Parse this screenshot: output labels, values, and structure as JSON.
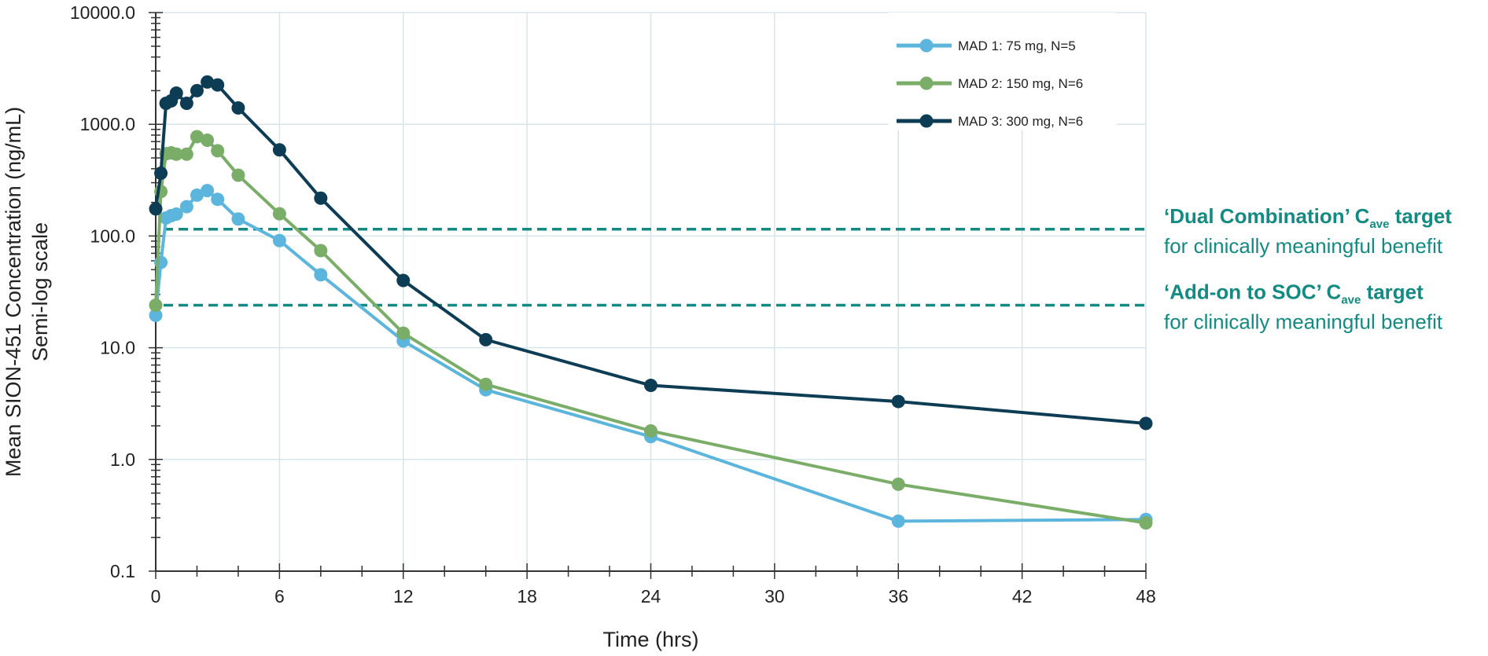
{
  "chart_data": {
    "type": "line",
    "xlabel": "Time (hrs)",
    "ylabel_line1": "Mean SION-451 Concentration (ng/mL)",
    "ylabel_line2": "Semi-log scale",
    "yscale": "log",
    "xlim": [
      0,
      48
    ],
    "ylim": [
      0.1,
      10000
    ],
    "x_ticks": [
      0,
      6,
      12,
      18,
      24,
      30,
      36,
      42,
      48
    ],
    "x_tick_labels": [
      "0",
      "6",
      "12",
      "18",
      "24",
      "30",
      "36",
      "42",
      "48"
    ],
    "y_ticks": [
      0.1,
      1,
      10,
      100,
      1000,
      10000
    ],
    "y_tick_labels": [
      "0.1",
      "1.0",
      "10.0",
      "100.0",
      "1000.0",
      "10000.0"
    ],
    "grid": true,
    "legend_position": "top-right",
    "series": [
      {
        "name": "MAD 1: 75 mg, N=5",
        "color": "#5bb5dc",
        "x": [
          0,
          0.25,
          0.5,
          0.75,
          1,
          1.5,
          2,
          2.5,
          3,
          4,
          6,
          8,
          12,
          16,
          24,
          36,
          48
        ],
        "y": [
          19.5,
          58,
          145,
          152,
          157,
          183,
          232,
          255,
          213,
          142,
          91,
          45,
          11.5,
          4.2,
          1.6,
          0.28,
          0.29
        ]
      },
      {
        "name": "MAD 2: 150 mg, N=6",
        "color": "#7aad67",
        "x": [
          0,
          0.25,
          0.5,
          0.75,
          1,
          1.5,
          2,
          2.5,
          3,
          4,
          6,
          8,
          12,
          16,
          24,
          36,
          48
        ],
        "y": [
          24,
          250,
          545,
          555,
          540,
          540,
          775,
          720,
          580,
          350,
          158,
          74,
          13.5,
          4.7,
          1.8,
          0.6,
          0.27
        ]
      },
      {
        "name": "MAD 3: 300 mg, N=6",
        "color": "#0d3c55",
        "x": [
          0,
          0.25,
          0.5,
          0.75,
          1,
          1.5,
          2,
          2.5,
          3,
          4,
          6,
          8,
          12,
          16,
          24,
          36,
          48
        ],
        "y": [
          175,
          365,
          1540,
          1620,
          1900,
          1540,
          2000,
          2390,
          2250,
          1400,
          590,
          218,
          40,
          11.8,
          4.6,
          3.3,
          2.1
        ]
      }
    ],
    "reference_lines": [
      {
        "y": 115,
        "color": "#138a82",
        "label_bold_prefix": "‘Dual Combination’ C",
        "label_subscript": "ave",
        "label_bold_suffix": " target",
        "label_line2": "for clinically meaningful benefit"
      },
      {
        "y": 24,
        "color": "#138a82",
        "label_bold_prefix": "‘Add-on to SOC’ C",
        "label_subscript": "ave",
        "label_bold_suffix": " target",
        "label_line2": "for clinically meaningful benefit"
      }
    ]
  }
}
